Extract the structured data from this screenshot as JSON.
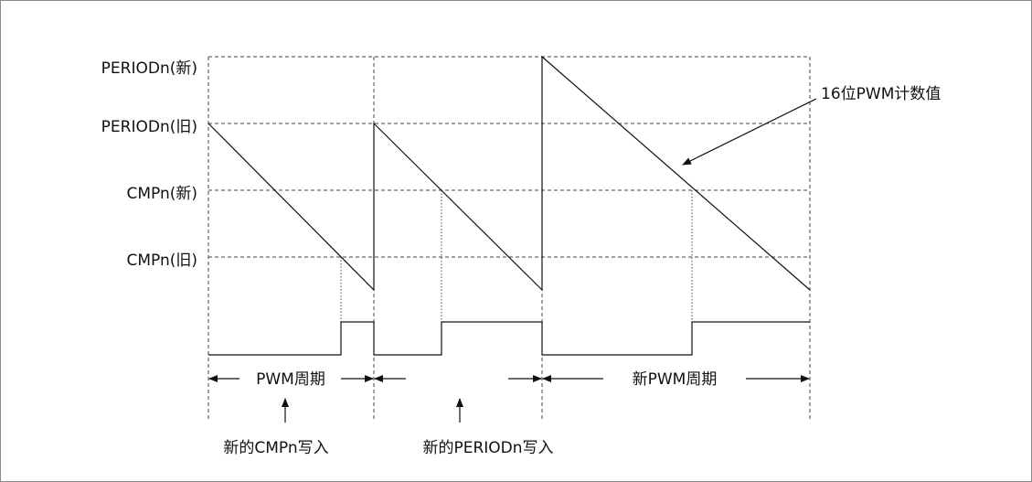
{
  "levels": {
    "period_new": "PERIODn(新)",
    "period_old": "PERIODn(旧)",
    "cmp_new": "CMPn(新)",
    "cmp_old": "CMPn(旧)"
  },
  "annotations": {
    "counter": "16位PWM计数值",
    "pwm_period": "PWM周期",
    "new_pwm_period": "新PWM周期",
    "new_cmp_write": "新的CMPn写入",
    "new_period_write": "新的PERIODn写入"
  },
  "colors": {
    "line": "#111111",
    "grid": "#444444",
    "frame": "#8a8a8a"
  }
}
